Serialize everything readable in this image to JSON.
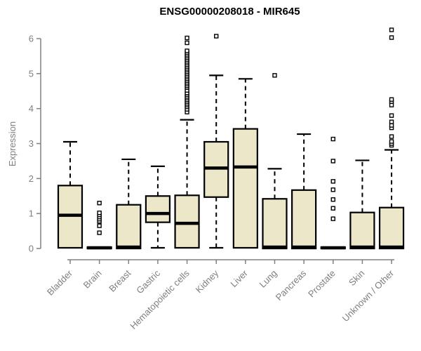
{
  "chart_data": {
    "type": "boxplot",
    "title": "ENSG00000208018 - MIR645",
    "ylabel": "Expression",
    "xlabel": "",
    "ylim": [
      0,
      6
    ],
    "yticks": [
      0,
      1,
      2,
      3,
      4,
      5,
      6
    ],
    "grid": false,
    "legend": "none",
    "x_tick_label_angle": -45,
    "colors": {
      "box_fill": "#EDE7C9",
      "box_border": "#000000",
      "median": "#000000",
      "whisker": "#000000",
      "outlier_fill": "#ffffff",
      "outlier_border": "#000000",
      "axis": "#808080",
      "axis_text": "#7f7f7f",
      "title_text": "#000000"
    },
    "categories": [
      "Bladder",
      "Brain",
      "Breast",
      "Gastric",
      "Hematopoietic cells",
      "Kidney",
      "Liver",
      "Lung",
      "Pancreas",
      "Prostate",
      "Skin",
      "Unknown / Other"
    ],
    "boxes": [
      {
        "category": "Bladder",
        "whisker_low": null,
        "q1": 0.02,
        "median": 0.95,
        "q3": 1.8,
        "whisker_high": 3.05,
        "outliers": []
      },
      {
        "category": "Brain",
        "whisker_low": null,
        "q1": 0,
        "median": 0.02,
        "q3": 0.04,
        "whisker_high": null,
        "outliers": [
          0.45,
          0.65,
          0.78,
          0.84,
          0.9,
          0.96,
          1.02,
          1.3
        ]
      },
      {
        "category": "Breast",
        "whisker_low": null,
        "q1": 0,
        "median": 0.04,
        "q3": 1.25,
        "whisker_high": 2.55,
        "outliers": []
      },
      {
        "category": "Gastric",
        "whisker_low": 0.02,
        "q1": 0.75,
        "median": 1.0,
        "q3": 1.5,
        "whisker_high": 2.35,
        "outliers": []
      },
      {
        "category": "Hematopoietic cells",
        "whisker_low": null,
        "q1": 0.02,
        "median": 0.72,
        "q3": 1.52,
        "whisker_high": 3.68,
        "outliers": [
          3.9,
          3.98,
          4.05,
          4.1,
          4.15,
          4.2,
          4.25,
          4.3,
          4.35,
          4.4,
          4.45,
          4.52,
          4.6,
          4.65,
          4.7,
          4.75,
          4.8,
          4.85,
          4.9,
          4.95,
          5.0,
          5.05,
          5.1,
          5.15,
          5.2,
          5.25,
          5.3,
          5.35,
          5.4,
          5.45,
          5.5,
          5.55,
          5.6,
          5.65,
          5.88,
          6.02
        ]
      },
      {
        "category": "Kidney",
        "whisker_low": 0.02,
        "q1": 1.47,
        "median": 2.3,
        "q3": 3.05,
        "whisker_high": 4.95,
        "outliers": [
          6.07
        ]
      },
      {
        "category": "Liver",
        "whisker_low": null,
        "q1": 0.02,
        "median": 2.33,
        "q3": 3.42,
        "whisker_high": 4.85,
        "outliers": []
      },
      {
        "category": "Lung",
        "whisker_low": null,
        "q1": 0,
        "median": 0.04,
        "q3": 1.42,
        "whisker_high": 2.28,
        "outliers": [
          4.95
        ]
      },
      {
        "category": "Pancreas",
        "whisker_low": null,
        "q1": 0,
        "median": 0.04,
        "q3": 1.67,
        "whisker_high": 3.27,
        "outliers": []
      },
      {
        "category": "Prostate",
        "whisker_low": null,
        "q1": 0,
        "median": 0.02,
        "q3": 0.04,
        "whisker_high": null,
        "outliers": [
          0.85,
          1.15,
          1.4,
          1.68,
          1.92,
          2.5,
          3.13
        ]
      },
      {
        "category": "Skin",
        "whisker_low": null,
        "q1": 0,
        "median": 0.04,
        "q3": 1.03,
        "whisker_high": 2.52,
        "outliers": []
      },
      {
        "category": "Unknown / Other",
        "whisker_low": null,
        "q1": 0,
        "median": 0.04,
        "q3": 1.17,
        "whisker_high": 2.82,
        "outliers": [
          2.95,
          3.0,
          3.06,
          3.2,
          3.45,
          3.52,
          3.62,
          3.8,
          4.1,
          4.2,
          4.26,
          6.03,
          6.25
        ]
      }
    ]
  }
}
